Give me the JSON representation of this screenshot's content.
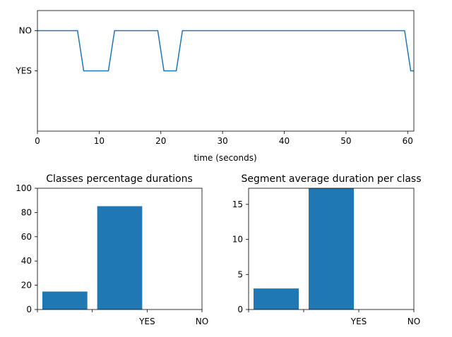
{
  "chart_data": [
    {
      "type": "line",
      "title": "",
      "xlabel": "time (seconds)",
      "ylabel": "",
      "xlim": [
        0,
        61
      ],
      "ylim": [
        -0.5,
        2.5
      ],
      "x_ticks": [
        0,
        10,
        20,
        30,
        40,
        50,
        60
      ],
      "x_tick_labels": [
        "0",
        "10",
        "20",
        "30",
        "40",
        "50",
        "60"
      ],
      "y_ticks": [
        1,
        2
      ],
      "y_tick_labels": [
        "YES",
        "NO"
      ],
      "grid": false,
      "series": [
        {
          "color": "#1f77b4",
          "x": [
            0,
            6.5,
            7.5,
            11.5,
            12.5,
            19.5,
            20.5,
            22.5,
            23.5,
            59.5,
            60.5,
            61
          ],
          "y": [
            2,
            2,
            1,
            1,
            2,
            2,
            1,
            1,
            2,
            2,
            1,
            1
          ]
        }
      ]
    },
    {
      "type": "bar",
      "title": "Classes percentage durations",
      "xlabel": "",
      "ylabel": "",
      "categories": [
        "",
        "YES",
        "NO"
      ],
      "tick_labels": [
        "",
        "YES",
        "NO"
      ],
      "values": [
        14.8,
        85.2,
        0
      ],
      "ylim": [
        0,
        100
      ],
      "y_ticks": [
        0,
        20,
        40,
        60,
        80,
        100
      ],
      "color": "#1f77b4",
      "grid": false
    },
    {
      "type": "bar",
      "title": "Segment average duration per class",
      "xlabel": "",
      "ylabel": "",
      "categories": [
        "",
        "YES",
        "NO"
      ],
      "tick_labels": [
        "",
        "YES",
        "NO"
      ],
      "values": [
        3.0,
        17.3,
        0
      ],
      "ylim": [
        0,
        17.3
      ],
      "y_ticks": [
        0,
        5,
        10,
        15
      ],
      "color": "#1f77b4",
      "grid": false
    }
  ]
}
